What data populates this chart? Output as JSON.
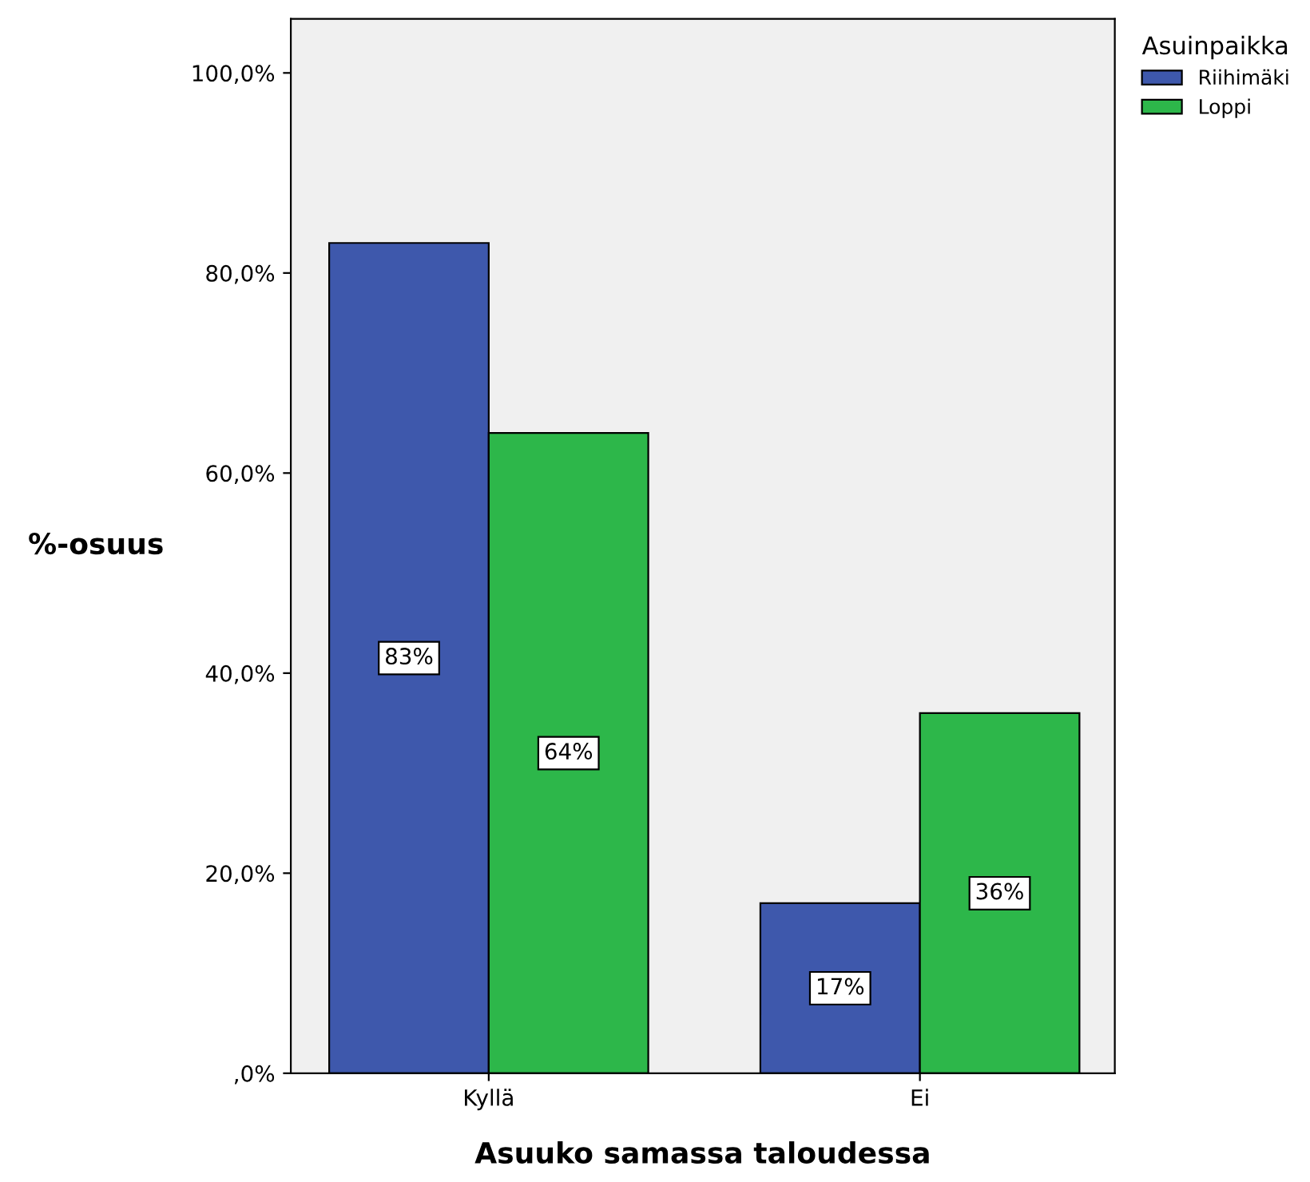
{
  "chart_data": {
    "type": "bar",
    "xlabel": "Asuuko samassa taloudessa",
    "ylabel": "%-osuus",
    "legend_title": "Asuinpaikka",
    "categories": [
      "Kyllä",
      "Ei"
    ],
    "series": [
      {
        "name": "Riihimäki",
        "color": "#3e58ac",
        "values": [
          83,
          17
        ],
        "value_labels": [
          "83%",
          "17%"
        ]
      },
      {
        "name": "Loppi",
        "color": "#2db74a",
        "values": [
          64,
          36
        ],
        "value_labels": [
          "64%",
          "36%"
        ]
      }
    ],
    "ylim": [
      0,
      105.4
    ],
    "yticks": [
      {
        "value": 0,
        "label": ",0%"
      },
      {
        "value": 20,
        "label": "20,0%"
      },
      {
        "value": 40,
        "label": "40,0%"
      },
      {
        "value": 60,
        "label": "60,0%"
      },
      {
        "value": 80,
        "label": "80,0%"
      },
      {
        "value": 100,
        "label": "100,0%"
      }
    ],
    "grid": false,
    "legend": "top right"
  }
}
